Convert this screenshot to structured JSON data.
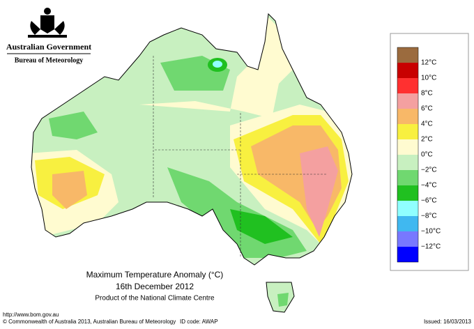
{
  "header": {
    "government": "Australian Government",
    "bureau": "Bureau of Meteorology"
  },
  "map": {
    "title": "Maximum Temperature Anomaly (°C)",
    "date": "16th December 2012",
    "product": "Product of the National Climate Centre"
  },
  "legend": {
    "colors": [
      "#9b6b3e",
      "#c80000",
      "#ff3030",
      "#f4a0a0",
      "#f8b868",
      "#f8f040",
      "#fffbd0",
      "#c8f0c0",
      "#70d870",
      "#20c020",
      "#90ffff",
      "#40b8f0",
      "#7878ff",
      "#0000ff"
    ],
    "labels": [
      "12°C",
      "10°C",
      "8°C",
      "6°C",
      "4°C",
      "2°C",
      "0°C",
      "−2°C",
      "−4°C",
      "−6°C",
      "−8°C",
      "−10°C",
      "−12°C"
    ]
  },
  "footer": {
    "url": "http://www.bom.gov.au",
    "copyright": "© Commonwealth of Australia 2013, Australian Bureau of Meteorology",
    "id": "ID code: AWAP",
    "issued": "Issued: 16/03/2013"
  }
}
